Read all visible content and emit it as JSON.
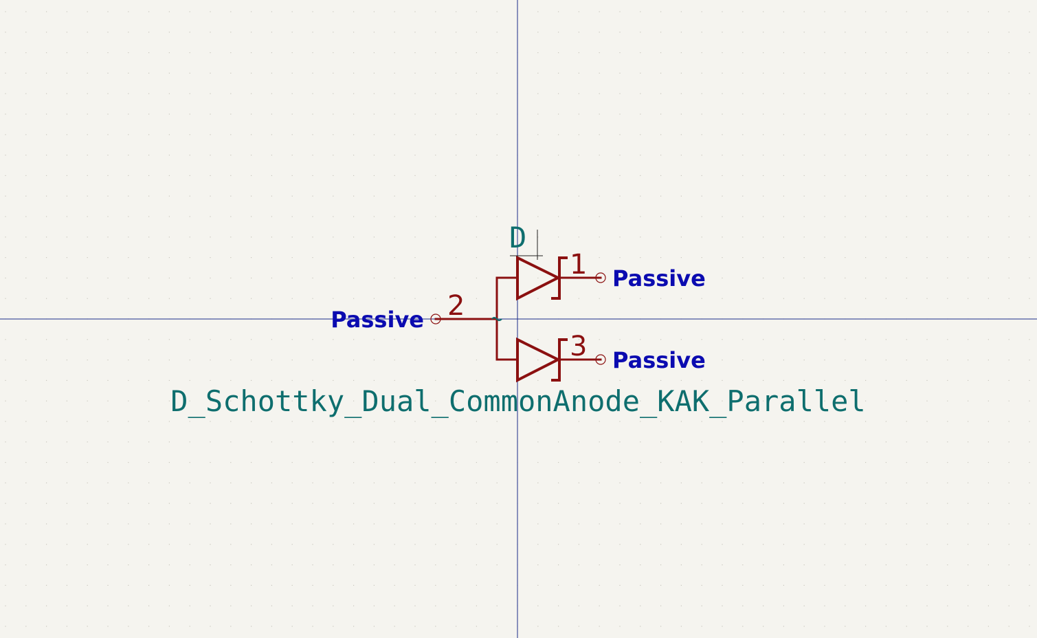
{
  "symbol": {
    "reference": "D",
    "value": "D_Schottky_Dual_CommonAnode_KAK_Parallel"
  },
  "pins": [
    {
      "number": "1",
      "type": "Passive"
    },
    {
      "number": "2",
      "type": "Passive"
    },
    {
      "number": "3",
      "type": "Passive"
    }
  ],
  "colors": {
    "background": "#f5f4ef",
    "grid_dot": "#c9c7bd",
    "axis": "#1c2b8a",
    "body": "#8b1010",
    "pin_number": "#8b1010",
    "pin_type": "#0b0bb0",
    "field_text": "#0e6e6e"
  }
}
